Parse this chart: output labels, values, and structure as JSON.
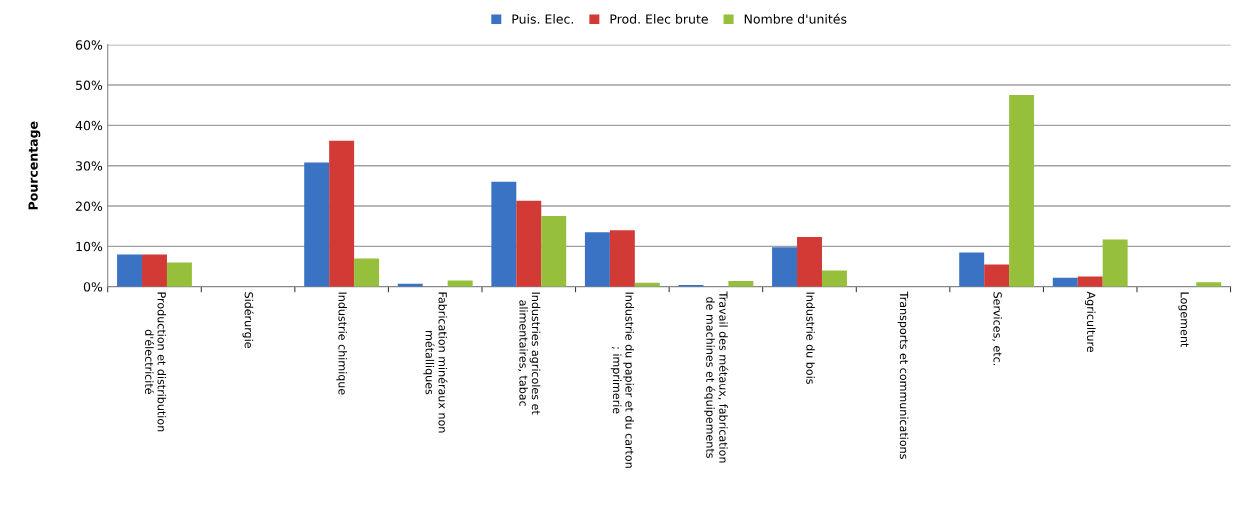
{
  "chart_data": {
    "type": "bar",
    "ylabel": "Pourcentage",
    "categories": [
      "Production et distribution\nd'électricité",
      "Sidérurgie",
      "Industrie chimique",
      "Fabrication minéraux non\nmétalliques",
      "Industries agricoles et\nalimentaires, tabac",
      "Industrie du papier et du carton\n; imprimerie",
      "Travail des métaux, fabrication\nde machines et équipements",
      "Industrie du bois",
      "Transports et communications",
      "Services, etc.",
      "Agriculture",
      "Logement"
    ],
    "series": [
      {
        "name": "Puis. Elec.",
        "color": "#3a72c4",
        "values": [
          8,
          0,
          30.8,
          0.7,
          26,
          13.5,
          0.4,
          9.8,
          0,
          8.5,
          2.2,
          0
        ]
      },
      {
        "name": "Prod. Elec brute",
        "color": "#d23a36",
        "values": [
          8,
          0,
          36.2,
          null,
          21.3,
          14,
          null,
          12.3,
          0,
          5.5,
          2.5,
          0
        ]
      },
      {
        "name": "Nombre d'unités",
        "color": "#96c03c",
        "values": [
          6,
          0,
          7,
          1.5,
          17.5,
          1,
          1.4,
          4,
          0,
          47.5,
          11.7,
          1.1
        ]
      }
    ],
    "ylim": [
      0,
      60
    ],
    "yticks": [
      {
        "value": 0,
        "label": "0%"
      },
      {
        "value": 10,
        "label": "10%"
      },
      {
        "value": 20,
        "label": "20%"
      },
      {
        "value": 30,
        "label": "30%"
      },
      {
        "value": 40,
        "label": "40%"
      },
      {
        "value": 50,
        "label": "50%"
      },
      {
        "value": 60,
        "label": "60%"
      }
    ],
    "grid": "y",
    "legend": "top"
  }
}
